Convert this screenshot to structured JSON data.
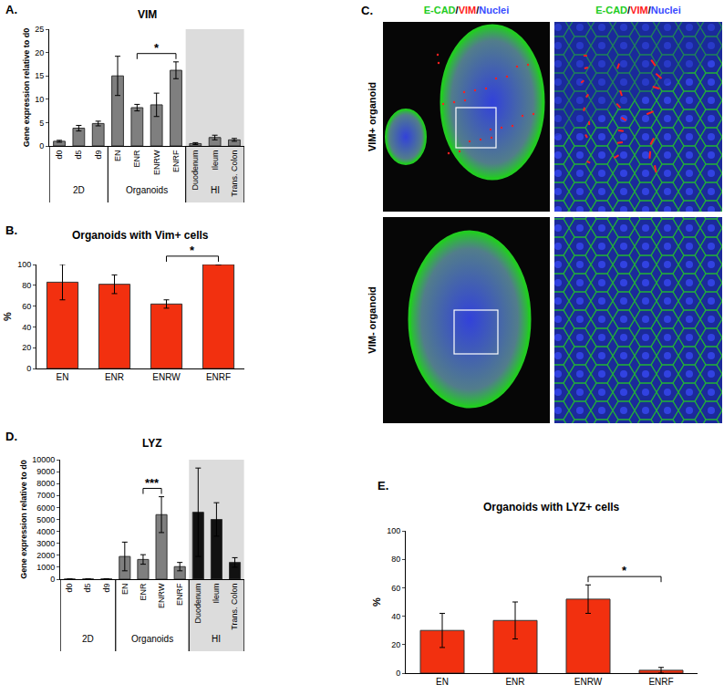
{
  "chart_data": [
    {
      "panel_label": "A.",
      "type": "bar",
      "title": "VIM",
      "y_label": "Gene expression relative to d0",
      "categories": [
        "d0",
        "d5",
        "d9",
        "EN",
        "ENR",
        "ENRW",
        "ENRF",
        "Duodenum",
        "Ileum",
        "Trans. Colon"
      ],
      "values": [
        1,
        3.8,
        4.8,
        15,
        8.2,
        8.8,
        16.2,
        0.5,
        1.8,
        1.3
      ],
      "errors": [
        0.2,
        0.6,
        0.5,
        4.2,
        0.7,
        2.5,
        1.8,
        0.2,
        0.5,
        0.3
      ],
      "colors": [
        "#7f7f7f",
        "#7f7f7f",
        "#7f7f7f",
        "#7f7f7f",
        "#7f7f7f",
        "#7f7f7f",
        "#7f7f7f",
        "#7f7f7f",
        "#7f7f7f",
        "#7f7f7f"
      ],
      "ylim": [
        0,
        25
      ],
      "yticks": [
        0,
        5,
        10,
        15,
        20,
        25
      ],
      "groups": [
        {
          "label": "2D",
          "members": [
            "d0",
            "d5",
            "d9"
          ]
        },
        {
          "label": "Organoids",
          "members": [
            "EN",
            "ENR",
            "ENRW",
            "ENRF"
          ]
        },
        {
          "label": "HI",
          "members": [
            "Duodenum",
            "Ileum",
            "Trans. Colon"
          ]
        }
      ],
      "shaded_group": "HI",
      "significance": [
        {
          "text": "*",
          "from": "ENR",
          "to": "ENRF"
        }
      ]
    },
    {
      "panel_label": "B.",
      "type": "bar",
      "title": "Organoids with Vim+ cells",
      "y_label": "%",
      "categories": [
        "EN",
        "ENR",
        "ENRW",
        "ENRF"
      ],
      "values": [
        83,
        81,
        62,
        100
      ],
      "errors": [
        17,
        9,
        4,
        0
      ],
      "color": "#f2300f",
      "ylim": [
        0,
        100
      ],
      "yticks": [
        0,
        20,
        40,
        60,
        80,
        100
      ],
      "significance": [
        {
          "text": "*",
          "from": "ENRW",
          "to": "ENRF"
        }
      ]
    },
    {
      "panel_label": "D.",
      "type": "bar",
      "title": "LYZ",
      "y_label": "Gene expression relative to d0",
      "categories": [
        "d0",
        "d5",
        "d9",
        "EN",
        "ENR",
        "ENRW",
        "ENRF",
        "Duodenum",
        "Ileum",
        "Trans. Colon"
      ],
      "values": [
        5,
        10,
        20,
        1900,
        1650,
        5400,
        1050,
        5600,
        5000,
        1400
      ],
      "errors": [
        2,
        4,
        8,
        1200,
        400,
        1500,
        350,
        3700,
        1400,
        400
      ],
      "colors": [
        "#7f7f7f",
        "#7f7f7f",
        "#7f7f7f",
        "#7f7f7f",
        "#7f7f7f",
        "#7f7f7f",
        "#7f7f7f",
        "#111111",
        "#111111",
        "#111111"
      ],
      "ylim": [
        0,
        10000
      ],
      "yticks": [
        0,
        1000,
        2000,
        3000,
        4000,
        5000,
        6000,
        7000,
        8000,
        9000,
        10000
      ],
      "groups": [
        {
          "label": "2D",
          "members": [
            "d0",
            "d5",
            "d9"
          ]
        },
        {
          "label": "Organoids",
          "members": [
            "EN",
            "ENR",
            "ENRW",
            "ENRF"
          ]
        },
        {
          "label": "HI",
          "members": [
            "Duodenum",
            "Ileum",
            "Trans. Colon"
          ]
        }
      ],
      "shaded_group": "HI",
      "significance": [
        {
          "text": "***",
          "from": "ENR",
          "to": "ENRW"
        }
      ]
    },
    {
      "panel_label": "E.",
      "type": "bar",
      "title": "Organoids with LYZ+ cells",
      "y_label": "%",
      "categories": [
        "EN",
        "ENR",
        "ENRW",
        "ENRF"
      ],
      "values": [
        30,
        37,
        52,
        2
      ],
      "errors": [
        12,
        13,
        10,
        2
      ],
      "color": "#f2300f",
      "ylim": [
        0,
        100
      ],
      "yticks": [
        0,
        20,
        40,
        60,
        80,
        100
      ],
      "significance": [
        {
          "text": "*",
          "from": "ENRW",
          "to": "ENRF"
        }
      ]
    }
  ],
  "image_panel": {
    "panel_label": "C.",
    "column_titles": [
      "E-CAD/VIM/Nuclei",
      "E-CAD/VIM/Nuclei"
    ],
    "channel_colors": [
      "#22cc22",
      "#ff2020",
      "#3a4cff"
    ],
    "rows": [
      "VIM+ organoid",
      "VIM- organoid"
    ]
  }
}
